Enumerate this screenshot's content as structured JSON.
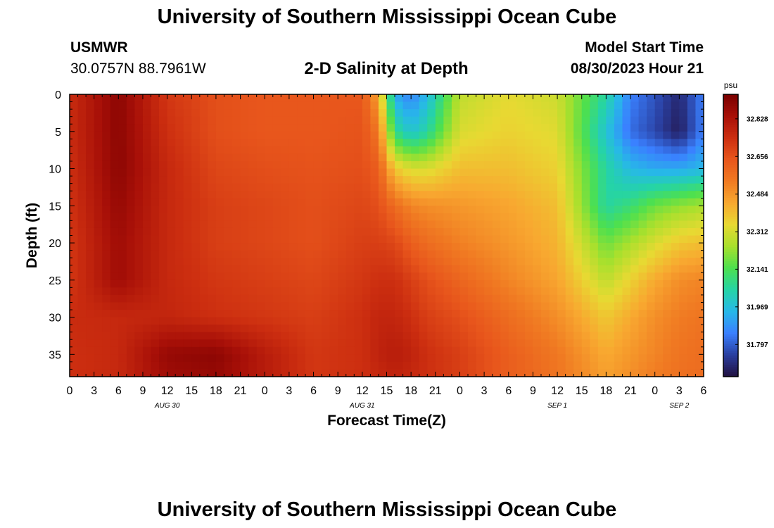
{
  "header": {
    "title": "University of Southern Mississippi Ocean Cube",
    "station_id": "USMWR",
    "station_coords": "30.0757N  88.7961W",
    "plot_title": "2-D Salinity at Depth",
    "run_label": "Model Start Time",
    "run_time": "08/30/2023 Hour 21"
  },
  "footer": {
    "title": "University of Southern Mississippi Ocean Cube"
  },
  "chart_data": {
    "type": "heatmap",
    "title": "2-D Salinity at Depth",
    "xlabel": "Forecast Time(Z)",
    "ylabel": "Depth (ft)",
    "x_ticks": [
      "0",
      "3",
      "6",
      "9",
      "12",
      "15",
      "18",
      "21",
      "0",
      "3",
      "6",
      "9",
      "12",
      "15",
      "18",
      "21",
      "0",
      "3",
      "6",
      "9",
      "12",
      "15",
      "18",
      "21",
      "0",
      "3",
      "6"
    ],
    "date_labels": [
      {
        "tick_index": 4,
        "label": "AUG 30"
      },
      {
        "tick_index": 12,
        "label": "AUG 31"
      },
      {
        "tick_index": 20,
        "label": "SEP 1"
      },
      {
        "tick_index": 25,
        "label": "SEP 2"
      }
    ],
    "xlim": [
      0,
      78
    ],
    "y_ticks": [
      0,
      5,
      10,
      15,
      20,
      25,
      30,
      35
    ],
    "ylim": [
      0,
      38
    ],
    "colorbar": {
      "unit": "psu",
      "ticks": [
        "32.828",
        "32.656",
        "32.484",
        "32.312",
        "32.141",
        "31.969",
        "31.797"
      ],
      "tick_values": [
        32.828,
        32.656,
        32.484,
        32.312,
        32.141,
        31.969,
        31.797
      ],
      "range": [
        31.65,
        32.94
      ]
    },
    "salinity_grid": {
      "x_hours": [
        0,
        6,
        12,
        18,
        24,
        30,
        36,
        38,
        40,
        42,
        44,
        48,
        54,
        60,
        66,
        69,
        72,
        75,
        78
      ],
      "depths_ft": [
        0,
        5,
        10,
        15,
        20,
        25,
        30,
        35,
        38
      ],
      "rows": [
        [
          32.75,
          32.9,
          32.72,
          32.66,
          32.64,
          32.64,
          32.64,
          32.45,
          31.92,
          31.85,
          31.95,
          32.28,
          32.34,
          32.3,
          32.05,
          31.85,
          31.78,
          31.7,
          31.85
        ],
        [
          32.75,
          32.9,
          32.74,
          32.66,
          32.64,
          32.64,
          32.65,
          32.55,
          32.08,
          31.98,
          32.05,
          32.32,
          32.36,
          32.33,
          31.98,
          31.82,
          31.76,
          31.68,
          31.85
        ],
        [
          32.74,
          32.9,
          32.76,
          32.68,
          32.66,
          32.65,
          32.66,
          32.62,
          32.38,
          32.32,
          32.32,
          32.4,
          32.4,
          32.36,
          32.05,
          31.95,
          31.92,
          31.92,
          31.95
        ],
        [
          32.73,
          32.88,
          32.76,
          32.7,
          32.68,
          32.66,
          32.68,
          32.66,
          32.58,
          32.52,
          32.5,
          32.48,
          32.45,
          32.4,
          32.05,
          32.1,
          32.18,
          32.22,
          32.25
        ],
        [
          32.72,
          32.86,
          32.76,
          32.7,
          32.68,
          32.66,
          32.7,
          32.7,
          32.68,
          32.62,
          32.58,
          32.53,
          32.48,
          32.42,
          32.18,
          32.25,
          32.32,
          32.38,
          32.4
        ],
        [
          32.72,
          32.86,
          32.76,
          32.72,
          32.7,
          32.68,
          32.72,
          32.74,
          32.74,
          32.7,
          32.66,
          32.6,
          32.52,
          32.45,
          32.28,
          32.36,
          32.44,
          32.5,
          32.52
        ],
        [
          32.75,
          32.76,
          32.77,
          32.74,
          32.72,
          32.7,
          32.74,
          32.77,
          32.77,
          32.74,
          32.7,
          32.66,
          32.58,
          32.5,
          32.38,
          32.44,
          32.5,
          32.54,
          32.56
        ],
        [
          32.74,
          32.76,
          32.88,
          32.9,
          32.8,
          32.72,
          32.74,
          32.78,
          32.8,
          32.78,
          32.74,
          32.7,
          32.62,
          32.55,
          32.44,
          32.48,
          32.52,
          32.56,
          32.58
        ],
        [
          32.74,
          32.76,
          32.86,
          32.88,
          32.8,
          32.72,
          32.74,
          32.76,
          32.78,
          32.76,
          32.74,
          32.7,
          32.62,
          32.56,
          32.46,
          32.5,
          32.54,
          32.57,
          32.58
        ]
      ]
    }
  },
  "colors": {
    "colormap": [
      "#22103f",
      "#2a3fa0",
      "#3a80ff",
      "#27b8e8",
      "#25d4a6",
      "#4ee04e",
      "#a8e02d",
      "#e8d932",
      "#f8a830",
      "#f07a22",
      "#e8561c",
      "#cc2e10",
      "#a81008",
      "#7a0000"
    ],
    "axis": "#000000",
    "background": "#ffffff"
  }
}
